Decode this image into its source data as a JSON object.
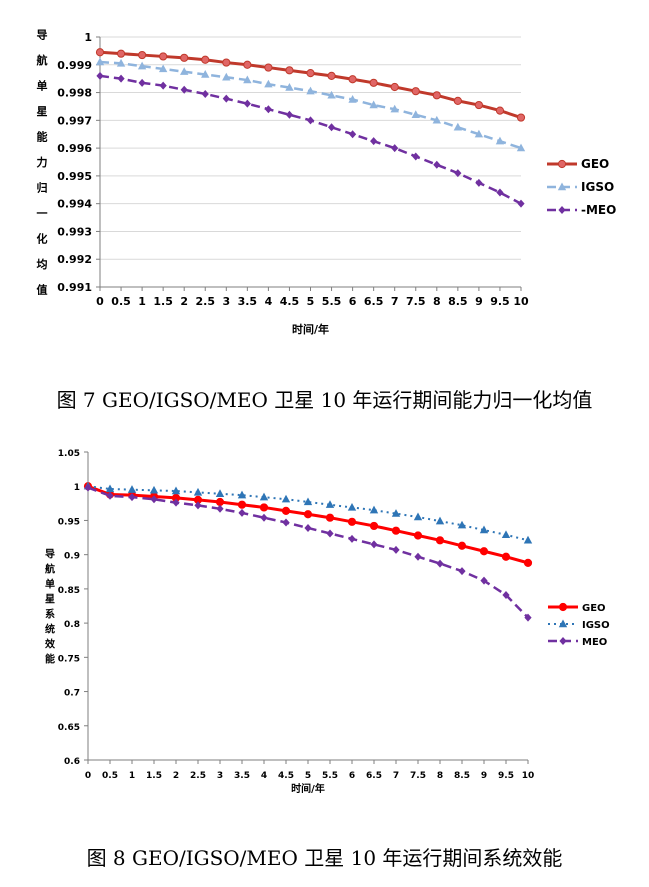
{
  "figure1": {
    "caption": "图 7 GEO/IGSO/MEO 卫星 10 年运行期间能力归一化均值",
    "chart_data": {
      "type": "line",
      "ylabel": "导航单星能力归一化均值",
      "xlabel": "时间/年",
      "ylim": [
        0.991,
        1
      ],
      "yticks": [
        "0.991",
        "0.992",
        "0.993",
        "0.994",
        "0.995",
        "0.996",
        "0.997",
        "0.998",
        "0.999",
        "1"
      ],
      "x": [
        0,
        0.5,
        1,
        1.5,
        2,
        2.5,
        3,
        3.5,
        4,
        4.5,
        5,
        5.5,
        6,
        6.5,
        7,
        7.5,
        8,
        8.5,
        9,
        9.5,
        10
      ],
      "xticks": [
        "0",
        "0.5",
        "1",
        "1.5",
        "2",
        "2.5",
        "3",
        "3.5",
        "4",
        "4.5",
        "5",
        "5.5",
        "6",
        "6.5",
        "7",
        "7.5",
        "8",
        "8.5",
        "9",
        "9.5",
        "10"
      ],
      "grid": true,
      "legend_position": "right",
      "series": [
        {
          "name": "GEO",
          "color": "#c0392b",
          "values": [
            0.99945,
            0.9994,
            0.99935,
            0.9993,
            0.99925,
            0.99918,
            0.99908,
            0.999,
            0.9989,
            0.9988,
            0.9987,
            0.9986,
            0.99848,
            0.99835,
            0.9982,
            0.99805,
            0.9979,
            0.9977,
            0.99755,
            0.99735,
            0.9971
          ]
        },
        {
          "name": "IGSO",
          "color": "#8fb4dd",
          "values": [
            0.9991,
            0.99905,
            0.99895,
            0.99885,
            0.99875,
            0.99865,
            0.99855,
            0.99845,
            0.9983,
            0.99818,
            0.99805,
            0.9979,
            0.99775,
            0.99755,
            0.9974,
            0.9972,
            0.997,
            0.99675,
            0.9965,
            0.99625,
            0.996
          ]
        },
        {
          "name": "-MEO",
          "color": "#7030a0",
          "values": [
            0.9986,
            0.9985,
            0.99835,
            0.99825,
            0.9981,
            0.99795,
            0.99778,
            0.9976,
            0.9974,
            0.9972,
            0.997,
            0.99675,
            0.9965,
            0.99625,
            0.996,
            0.9957,
            0.9954,
            0.9951,
            0.99475,
            0.9944,
            0.994
          ]
        }
      ]
    }
  },
  "figure2": {
    "caption": "图 8 GEO/IGSO/MEO 卫星 10 年运行期间系统效能",
    "chart_data": {
      "type": "line",
      "ylabel": "导航单星系统效能",
      "xlabel": "时间/年",
      "ylim": [
        0.6,
        1.05
      ],
      "yticks": [
        "0.6",
        "0.65",
        "0.7",
        "0.75",
        "0.8",
        "0.85",
        "0.9",
        "0.95",
        "1",
        "1.05"
      ],
      "x": [
        0,
        0.5,
        1,
        1.5,
        2,
        2.5,
        3,
        3.5,
        4,
        4.5,
        5,
        5.5,
        6,
        6.5,
        7,
        7.5,
        8,
        8.5,
        9,
        9.5,
        10
      ],
      "xticks": [
        "0",
        "0.5",
        "1",
        "1.5",
        "2",
        "2.5",
        "3",
        "3.5",
        "4",
        "4.5",
        "5",
        "5.5",
        "6",
        "6.5",
        "7",
        "7.5",
        "8",
        "8.5",
        "9",
        "9.5",
        "10"
      ],
      "grid": false,
      "legend_position": "right",
      "series": [
        {
          "name": "GEO",
          "color": "#ff0000",
          "values": [
            1.0,
            0.988,
            0.987,
            0.985,
            0.983,
            0.98,
            0.977,
            0.973,
            0.969,
            0.964,
            0.959,
            0.954,
            0.948,
            0.942,
            0.935,
            0.928,
            0.921,
            0.913,
            0.905,
            0.897,
            0.888
          ]
        },
        {
          "name": "IGSO",
          "color": "#2e75b6",
          "values": [
            1.0,
            0.996,
            0.995,
            0.994,
            0.993,
            0.991,
            0.989,
            0.987,
            0.984,
            0.981,
            0.977,
            0.973,
            0.969,
            0.965,
            0.96,
            0.955,
            0.949,
            0.943,
            0.936,
            0.929,
            0.921
          ]
        },
        {
          "name": "MEO",
          "color": "#7030a0",
          "values": [
            0.998,
            0.986,
            0.984,
            0.981,
            0.976,
            0.972,
            0.967,
            0.961,
            0.954,
            0.947,
            0.939,
            0.931,
            0.923,
            0.915,
            0.907,
            0.897,
            0.887,
            0.876,
            0.862,
            0.841,
            0.808
          ]
        }
      ]
    }
  }
}
